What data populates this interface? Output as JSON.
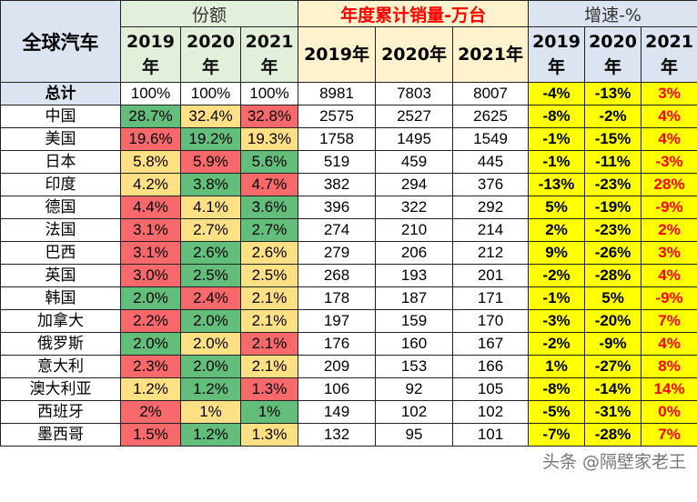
{
  "header": {
    "corner": "全球汽车",
    "share_title": "份额",
    "sales_title": "年度累计销量-万台",
    "growth_title": "增速-%",
    "share_years": [
      "2019\n年",
      "2020\n年",
      "2021\n年"
    ],
    "sales_years": [
      "2019年",
      "2020年",
      "2021年"
    ],
    "growth_years": [
      "2019\n年",
      "2020\n年",
      "2021\n年"
    ]
  },
  "colors": {
    "high": "#63BE7B",
    "mid": "#FFE084",
    "low": "#F8696B",
    "growth_bg": "#FFFF00",
    "growth_2021_text": "#FF0000"
  },
  "rows": [
    {
      "name": "总计",
      "share": [
        "100%",
        "100%",
        "100%"
      ],
      "shade": [
        "",
        "",
        ""
      ],
      "sales": [
        "8981",
        "7803",
        "8007"
      ],
      "growth": [
        "-4%",
        "-13%",
        "3%"
      ]
    },
    {
      "name": "中国",
      "share": [
        "28.7%",
        "32.4%",
        "32.8%"
      ],
      "shade": [
        "g",
        "y",
        "r"
      ],
      "sales": [
        "2575",
        "2527",
        "2625"
      ],
      "growth": [
        "-8%",
        "-2%",
        "4%"
      ]
    },
    {
      "name": "美国",
      "share": [
        "19.6%",
        "19.2%",
        "19.3%"
      ],
      "shade": [
        "r",
        "g",
        "y"
      ],
      "sales": [
        "1758",
        "1495",
        "1549"
      ],
      "growth": [
        "-1%",
        "-15%",
        "4%"
      ]
    },
    {
      "name": "日本",
      "share": [
        "5.8%",
        "5.9%",
        "5.6%"
      ],
      "shade": [
        "y",
        "r",
        "g"
      ],
      "sales": [
        "519",
        "459",
        "445"
      ],
      "growth": [
        "-1%",
        "-11%",
        "-3%"
      ]
    },
    {
      "name": "印度",
      "share": [
        "4.2%",
        "3.8%",
        "4.7%"
      ],
      "shade": [
        "y",
        "g",
        "r"
      ],
      "sales": [
        "382",
        "294",
        "376"
      ],
      "growth": [
        "-13%",
        "-23%",
        "28%"
      ]
    },
    {
      "name": "德国",
      "share": [
        "4.4%",
        "4.1%",
        "3.6%"
      ],
      "shade": [
        "r",
        "y",
        "g"
      ],
      "sales": [
        "396",
        "322",
        "292"
      ],
      "growth": [
        "5%",
        "-19%",
        "-9%"
      ]
    },
    {
      "name": "法国",
      "share": [
        "3.1%",
        "2.7%",
        "2.7%"
      ],
      "shade": [
        "r",
        "y",
        "g"
      ],
      "sales": [
        "274",
        "210",
        "214"
      ],
      "growth": [
        "2%",
        "-23%",
        "2%"
      ]
    },
    {
      "name": "巴西",
      "share": [
        "3.1%",
        "2.6%",
        "2.6%"
      ],
      "shade": [
        "r",
        "g",
        "y"
      ],
      "sales": [
        "279",
        "206",
        "212"
      ],
      "growth": [
        "9%",
        "-26%",
        "3%"
      ]
    },
    {
      "name": "英国",
      "share": [
        "3.0%",
        "2.5%",
        "2.5%"
      ],
      "shade": [
        "r",
        "g",
        "y"
      ],
      "sales": [
        "268",
        "193",
        "201"
      ],
      "growth": [
        "-2%",
        "-28%",
        "4%"
      ]
    },
    {
      "name": "韩国",
      "share": [
        "2.0%",
        "2.4%",
        "2.1%"
      ],
      "shade": [
        "g",
        "r",
        "y"
      ],
      "sales": [
        "178",
        "187",
        "171"
      ],
      "growth": [
        "-1%",
        "5%",
        "-9%"
      ]
    },
    {
      "name": "加拿大",
      "share": [
        "2.2%",
        "2.0%",
        "2.1%"
      ],
      "shade": [
        "r",
        "g",
        "y"
      ],
      "sales": [
        "197",
        "159",
        "170"
      ],
      "growth": [
        "-3%",
        "-20%",
        "7%"
      ]
    },
    {
      "name": "俄罗斯",
      "share": [
        "2.0%",
        "2.0%",
        "2.1%"
      ],
      "shade": [
        "g",
        "y",
        "r"
      ],
      "sales": [
        "176",
        "160",
        "167"
      ],
      "growth": [
        "-2%",
        "-9%",
        "4%"
      ]
    },
    {
      "name": "意大利",
      "share": [
        "2.3%",
        "2.0%",
        "2.1%"
      ],
      "shade": [
        "r",
        "g",
        "y"
      ],
      "sales": [
        "209",
        "153",
        "166"
      ],
      "growth": [
        "1%",
        "-27%",
        "8%"
      ]
    },
    {
      "name": "澳大利亚",
      "share": [
        "1.2%",
        "1.2%",
        "1.3%"
      ],
      "shade": [
        "y",
        "g",
        "r"
      ],
      "sales": [
        "106",
        "92",
        "105"
      ],
      "growth": [
        "-8%",
        "-14%",
        "14%"
      ]
    },
    {
      "name": "西班牙",
      "share": [
        "2%",
        "1%",
        "1%"
      ],
      "shade": [
        "r",
        "y",
        "g"
      ],
      "sales": [
        "149",
        "102",
        "102"
      ],
      "growth": [
        "-5%",
        "-31%",
        "0%"
      ]
    },
    {
      "name": "墨西哥",
      "share": [
        "1.5%",
        "1.2%",
        "1.3%"
      ],
      "shade": [
        "r",
        "g",
        "y"
      ],
      "sales": [
        "132",
        "95",
        "101"
      ],
      "growth": [
        "-7%",
        "-28%",
        "7%"
      ]
    }
  ],
  "watermark": "头条 @隔壁家老王"
}
